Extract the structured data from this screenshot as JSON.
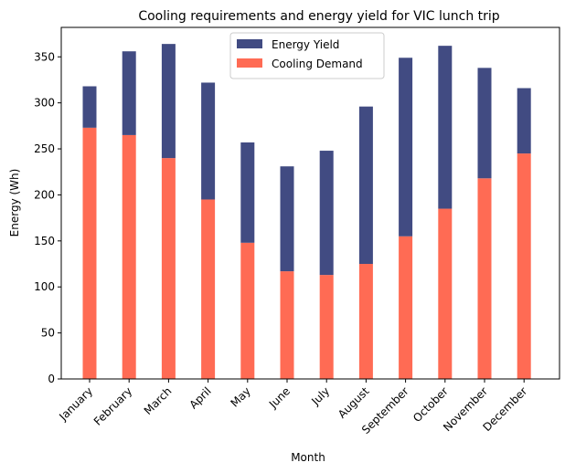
{
  "chart_data": {
    "type": "bar",
    "stacked": true,
    "title": "Cooling requirements and energy yield for VIC lunch trip",
    "xlabel": "Month",
    "ylabel": "Energy (Wh)",
    "ylim": [
      0,
      382
    ],
    "yticks": [
      0,
      50,
      100,
      150,
      200,
      250,
      300,
      350
    ],
    "categories": [
      "January",
      "February",
      "March",
      "April",
      "May",
      "June",
      "July",
      "August",
      "September",
      "October",
      "November",
      "December"
    ],
    "series": [
      {
        "name": "Cooling Demand",
        "color": "#ff6b54",
        "values": [
          273,
          265,
          240,
          195,
          148,
          117,
          113,
          125,
          155,
          185,
          218,
          245
        ]
      },
      {
        "name": "Energy Yield",
        "color": "#414b82",
        "values": [
          45,
          91,
          124,
          127,
          109,
          114,
          135,
          171,
          194,
          177,
          120,
          71
        ]
      }
    ],
    "legend": {
      "position": "top-center",
      "order": [
        "Energy Yield",
        "Cooling Demand"
      ]
    },
    "grid": false
  }
}
